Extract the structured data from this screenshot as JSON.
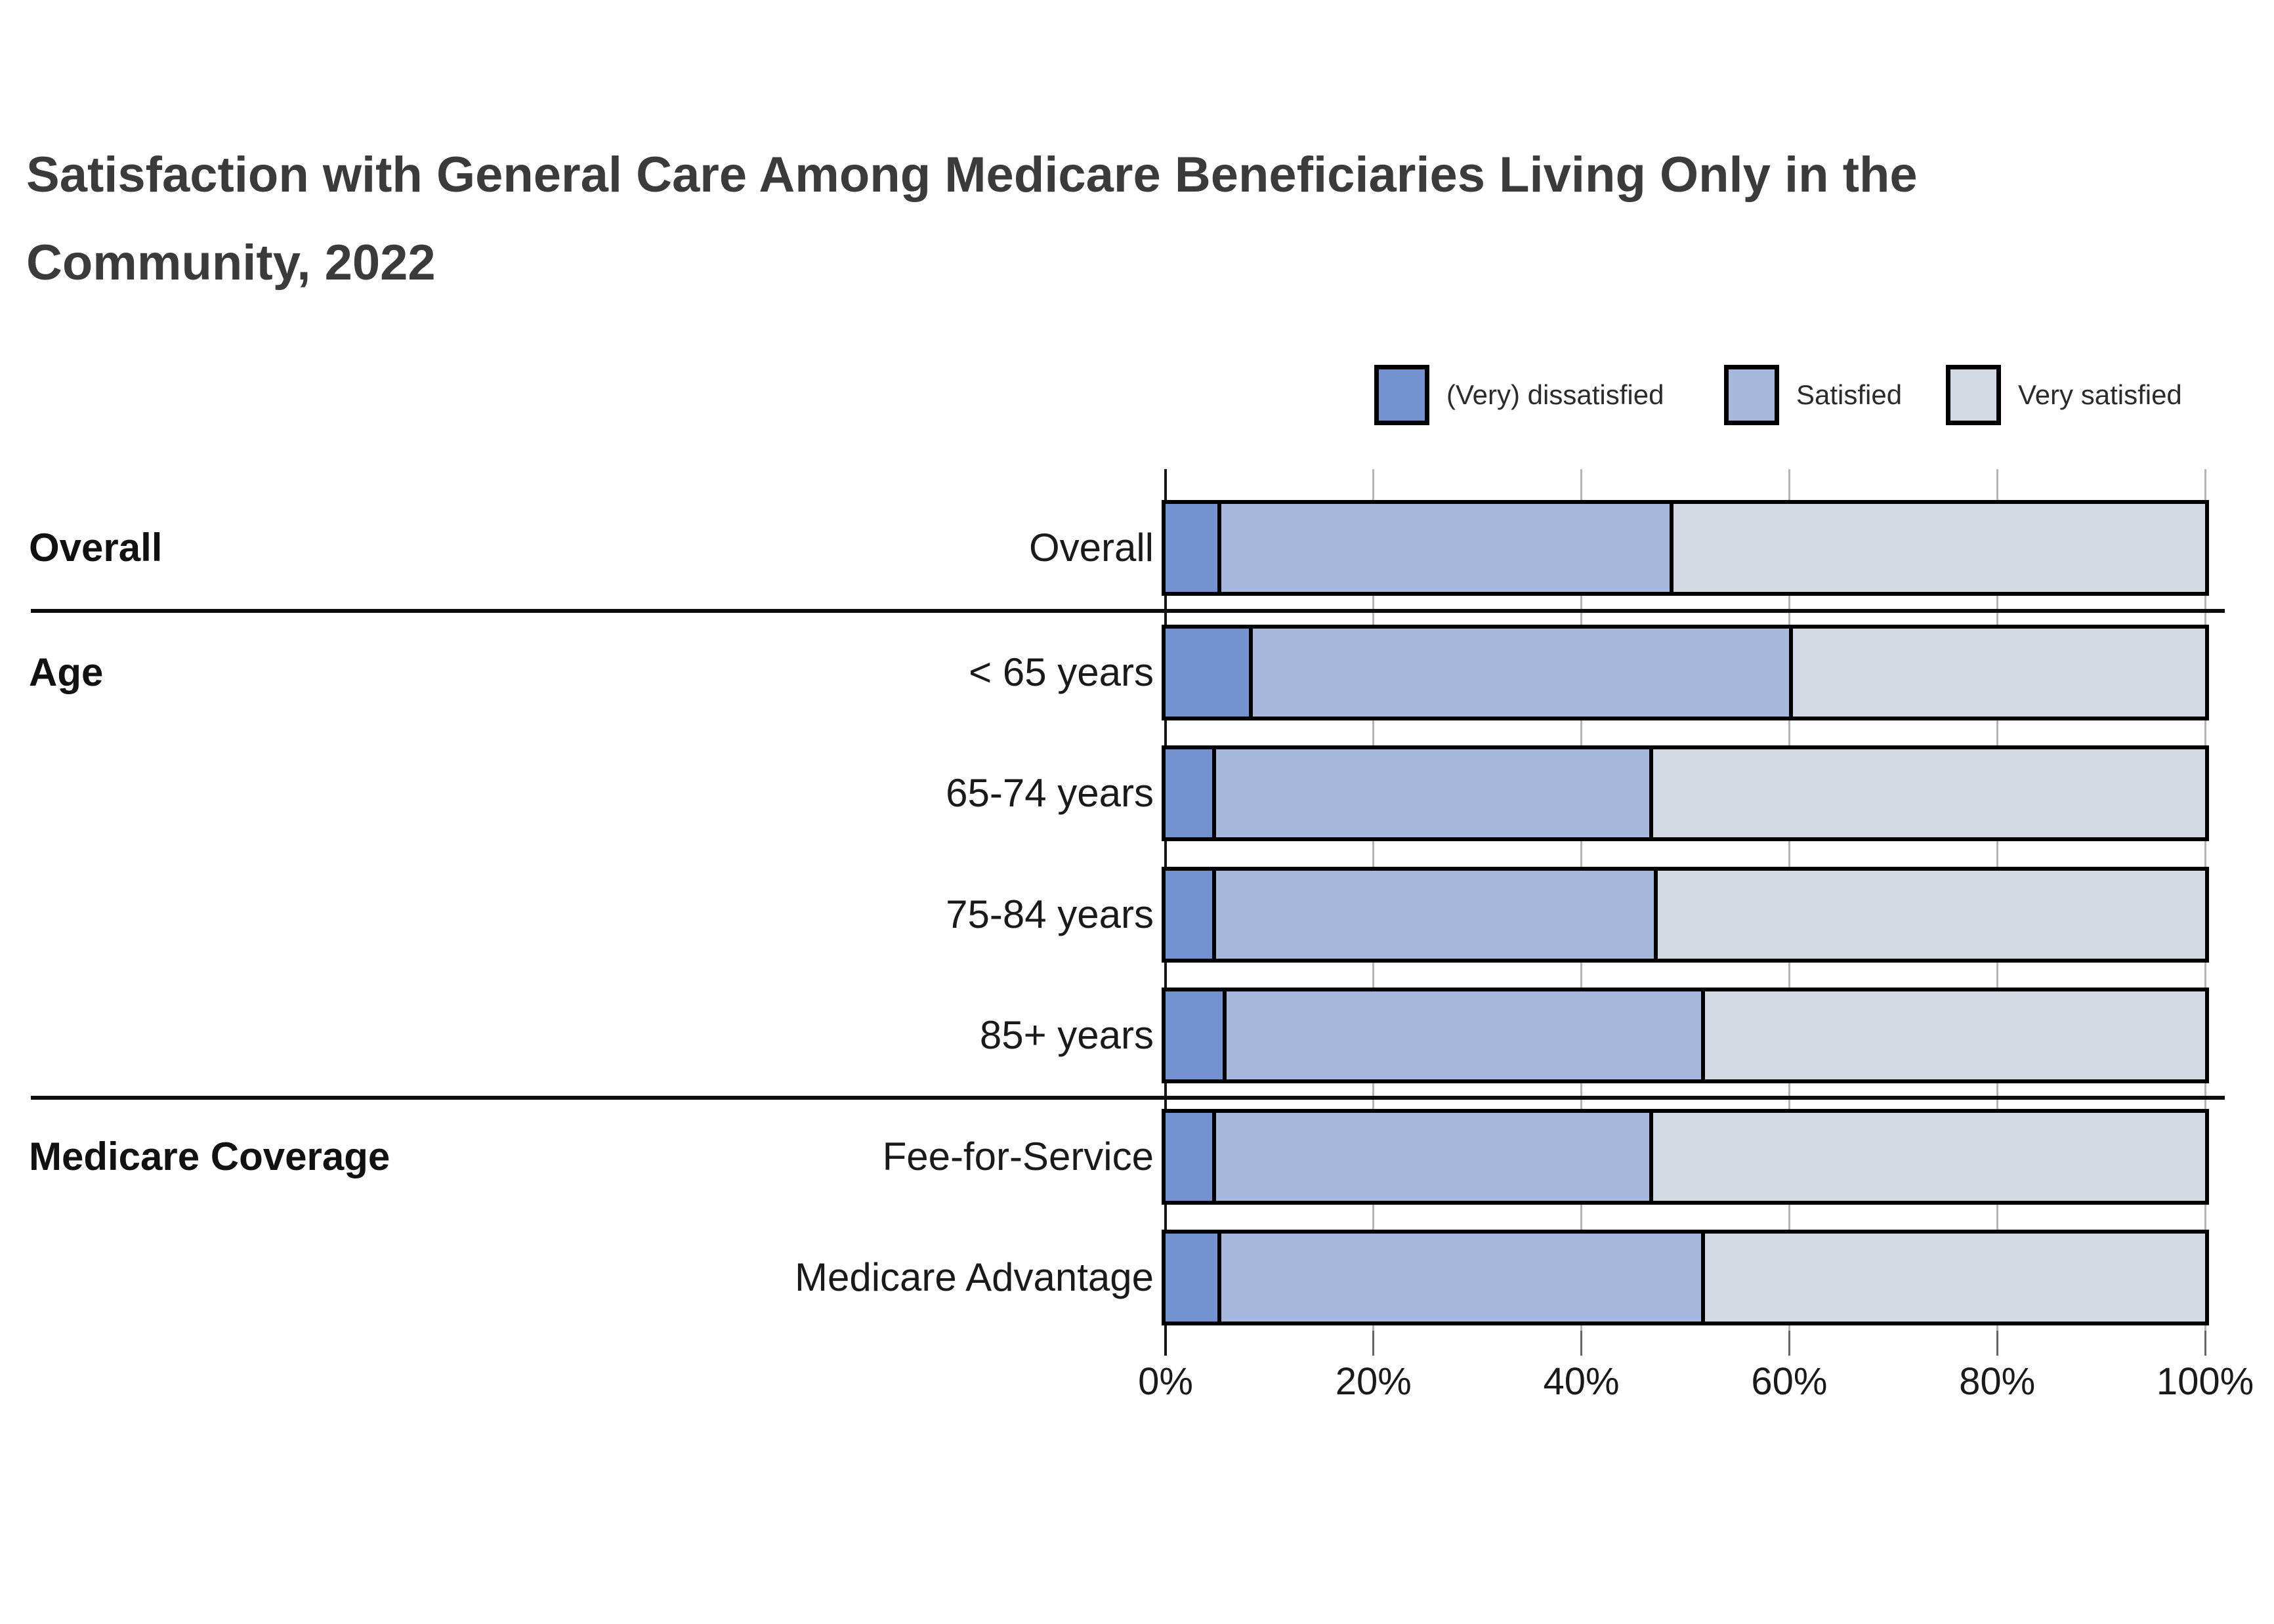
{
  "title": {
    "full": "Satisfaction with General Care Among Medicare Beneficiaries Living Only in the Community, 2022",
    "lines": [
      "Satisfaction with General Care Among Medicare Beneficiaries Living Only in the",
      "Community, 2022"
    ]
  },
  "legend": {
    "items": [
      {
        "label": "(Very) dissatisfied",
        "color": "#7492cf"
      },
      {
        "label": "Satisfied",
        "color": "#a6b8dc"
      },
      {
        "label": "Very satisfied",
        "color": "#d4dae4"
      }
    ]
  },
  "sections": [
    {
      "label": "Overall",
      "row_index": 0
    },
    {
      "label": "Age",
      "row_index": 1
    },
    {
      "label": "Medicare Coverage",
      "row_index": 5
    }
  ],
  "chart_data": {
    "type": "bar",
    "stacked": true,
    "orientation": "horizontal",
    "categories": [
      "Overall",
      "< 65 years",
      "65-74 years",
      "75-84 years",
      "85+ years",
      "Fee-for-Service",
      "Medicare Advantage"
    ],
    "series": [
      {
        "name": "(Very) dissatisfied",
        "color": "#7492cf",
        "values": [
          5,
          8,
          4.5,
          4.5,
          5.5,
          4.5,
          5
        ]
      },
      {
        "name": "Satisfied",
        "color": "#a6b8dc",
        "values": [
          43.5,
          52,
          42,
          42.5,
          46,
          42,
          46.5
        ]
      },
      {
        "name": "Very satisfied",
        "color": "#d4dae4",
        "values": [
          51.5,
          40,
          53.5,
          53,
          48.5,
          53.5,
          48.5
        ]
      }
    ],
    "x_ticks": [
      "0%",
      "20%",
      "40%",
      "60%",
      "80%",
      "100%"
    ],
    "x_tick_values": [
      0,
      20,
      40,
      60,
      80,
      100
    ],
    "xlim": [
      0,
      100
    ],
    "grid": true,
    "legend_position": "top-right",
    "value_labels": false
  }
}
